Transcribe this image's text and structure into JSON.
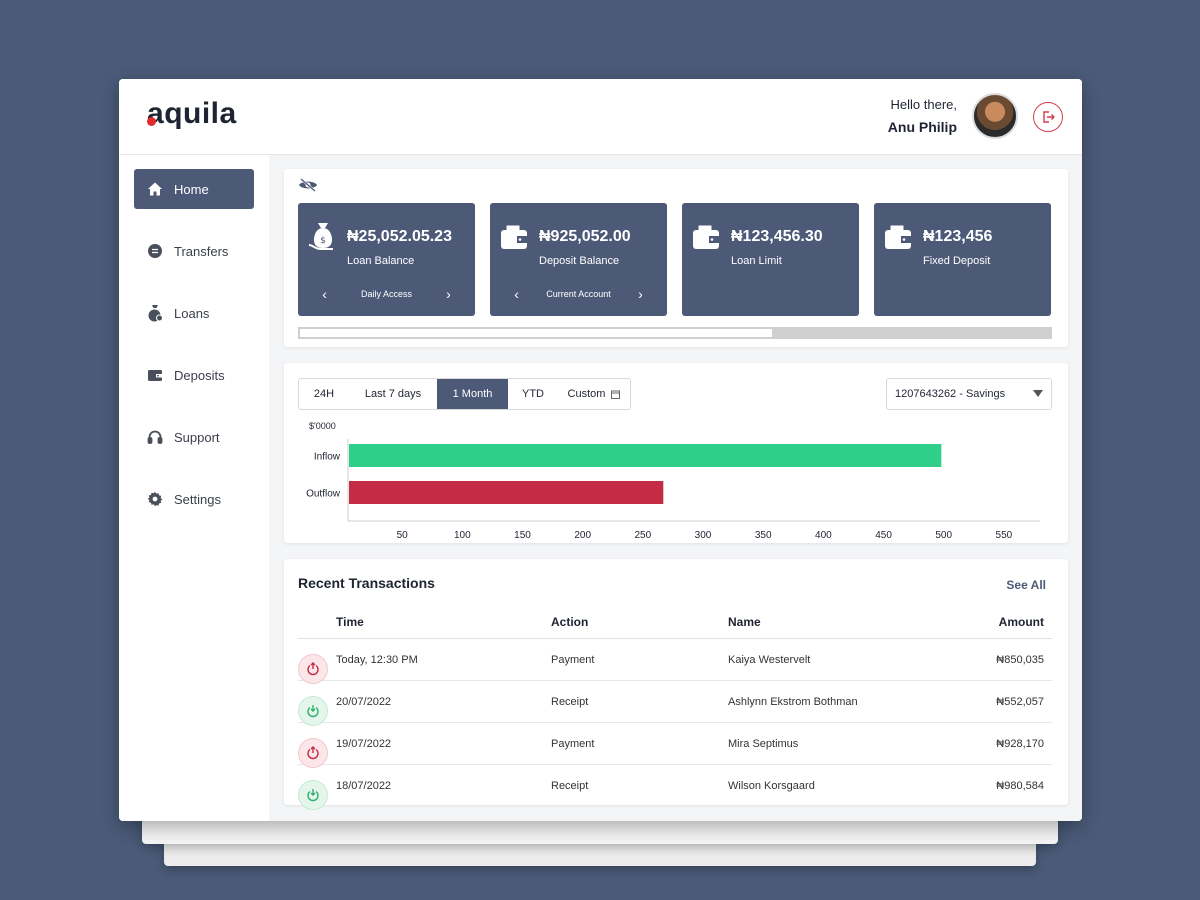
{
  "app": {
    "logo_text": "quila",
    "logo_first": "a"
  },
  "header": {
    "greeting": "Hello there,",
    "user_name": "Anu Philip"
  },
  "sidebar": {
    "items": [
      {
        "label": "Home",
        "icon": "home-icon",
        "active": true
      },
      {
        "label": "Transfers",
        "icon": "transfer-icon"
      },
      {
        "label": "Loans",
        "icon": "money-bag-icon"
      },
      {
        "label": "Deposits",
        "icon": "wallet-icon"
      },
      {
        "label": "Support",
        "icon": "headset-icon"
      },
      {
        "label": "Settings",
        "icon": "gear-icon"
      }
    ]
  },
  "cards": [
    {
      "amount": "₦25,052.05.23",
      "label": "Loan Balance",
      "sub": "Daily Access",
      "icon": "money-bag-icon"
    },
    {
      "amount": "₦925,052.00",
      "label": "Deposit Balance",
      "sub": "Current Account",
      "icon": "wallet-icon"
    },
    {
      "amount": "₦123,456.30",
      "label": "Loan Limit",
      "icon": "wallet-icon"
    },
    {
      "amount": "₦123,456",
      "label": "Fixed Deposit",
      "icon": "wallet-icon"
    }
  ],
  "filters": {
    "tabs": [
      "24H",
      "Last 7 days",
      "1 Month",
      "YTD",
      "Custom"
    ],
    "active": "1 Month",
    "account": "1207643262 - Savings"
  },
  "chart_data": {
    "type": "bar",
    "orientation": "horizontal",
    "unit_label": "$'0000",
    "categories": [
      "Inflow",
      "Outflow"
    ],
    "values": [
      498,
      267
    ],
    "colors": [
      "#2fcf8a",
      "#c42b45"
    ],
    "xticks": [
      50,
      100,
      150,
      200,
      250,
      300,
      350,
      400,
      450,
      500,
      550
    ],
    "xlim": [
      5,
      580
    ]
  },
  "transactions": {
    "title": "Recent Transactions",
    "see_all": "See All",
    "columns": {
      "time": "Time",
      "action": "Action",
      "name": "Name",
      "amount": "Amount"
    },
    "rows": [
      {
        "time": "Today, 12:30 PM",
        "action": "Payment",
        "name": "Kaiya Westervelt",
        "amount": "₦850,035",
        "type": "payment"
      },
      {
        "time": "20/07/2022",
        "action": "Receipt",
        "name": "Ashlynn Ekstrom Bothman",
        "amount": "₦552,057",
        "type": "receipt"
      },
      {
        "time": "19/07/2022",
        "action": "Payment",
        "name": "Mira Septimus",
        "amount": "₦928,170",
        "type": "payment"
      },
      {
        "time": "18/07/2022",
        "action": "Receipt",
        "name": "Wilson Korsgaard",
        "amount": "₦980,584",
        "type": "receipt"
      }
    ]
  }
}
